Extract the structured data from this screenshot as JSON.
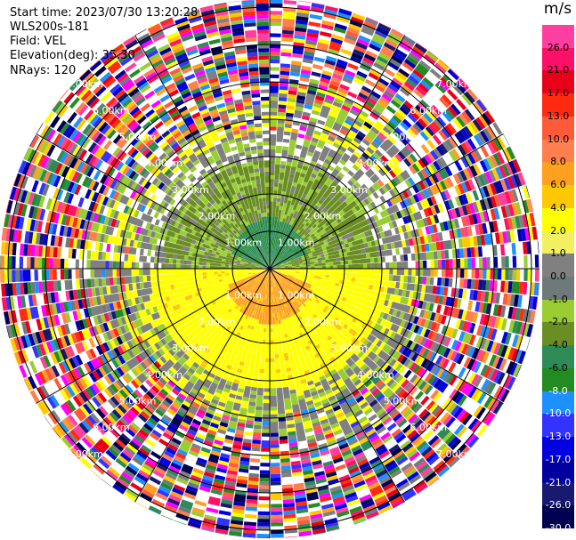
{
  "info": {
    "start_time": "Start time: 2023/07/30 13:20:28",
    "instrument": "WLS200s-181",
    "field": "Field: VEL",
    "elevation": "Elevation(deg): 35.30",
    "nrays": "NRays: 120"
  },
  "colorbar": {
    "unit": "m/s",
    "ticks": [
      "26.0",
      "21.0",
      "17.0",
      "13.0",
      "10.0",
      "8.0",
      "6.0",
      "4.0",
      "2.0",
      "1.0",
      "0.0",
      "-1.0",
      "-2.0",
      "-4.0",
      "-6.0",
      "-8.0",
      "-10.0",
      "-13.0",
      "-17.0",
      "-21.0",
      "-26.0",
      "-30.0"
    ],
    "colors": [
      "#ff3fa0",
      "#ff1068",
      "#e8001a",
      "#ff2a10",
      "#ff5a3a",
      "#ff7f4f",
      "#ffa020",
      "#ffc800",
      "#ffff00",
      "#f0f060",
      "#808080",
      "#6e7a7a",
      "#9acd32",
      "#6b8e23",
      "#2e8b57",
      "#228b22",
      "#1e90ff",
      "#3333ff",
      "#0000e0",
      "#0000a0",
      "#191970",
      "#000050"
    ],
    "light_from_index": 15
  },
  "chart_data": {
    "type": "ppi",
    "field": "VEL",
    "units": "m/s",
    "nrays": 120,
    "elevation_deg": 35.3,
    "range_rings_km": [
      1.0,
      2.0,
      3.0,
      4.0,
      5.0,
      6.0,
      7.0
    ],
    "ring_labels": [
      "1.00km",
      "2.00km",
      "3.00km",
      "4.00km",
      "5.00km",
      "6.00km",
      "7.00km"
    ],
    "color_scale": [
      -30.0,
      -26.0,
      -21.0,
      -17.0,
      -13.0,
      -10.0,
      -8.0,
      -6.0,
      -4.0,
      -2.0,
      -1.0,
      0.0,
      1.0,
      2.0,
      4.0,
      6.0,
      8.0,
      10.0,
      13.0,
      17.0,
      21.0,
      26.0
    ],
    "regions": [
      {
        "area": "inner north",
        "range_km": [
          0,
          1.5
        ],
        "value_approx": -6.0
      },
      {
        "area": "mid north",
        "range_km": [
          1.5,
          3.5
        ],
        "value_approx": -2.0
      },
      {
        "area": "inner south",
        "range_km": [
          0,
          1.5
        ],
        "value_approx": 6.0
      },
      {
        "area": "mid south",
        "range_km": [
          1.5,
          3.8
        ],
        "value_approx": 2.0
      },
      {
        "area": "outer ring",
        "range_km": [
          4.5,
          7.5
        ],
        "value_approx": "noise"
      }
    ]
  }
}
